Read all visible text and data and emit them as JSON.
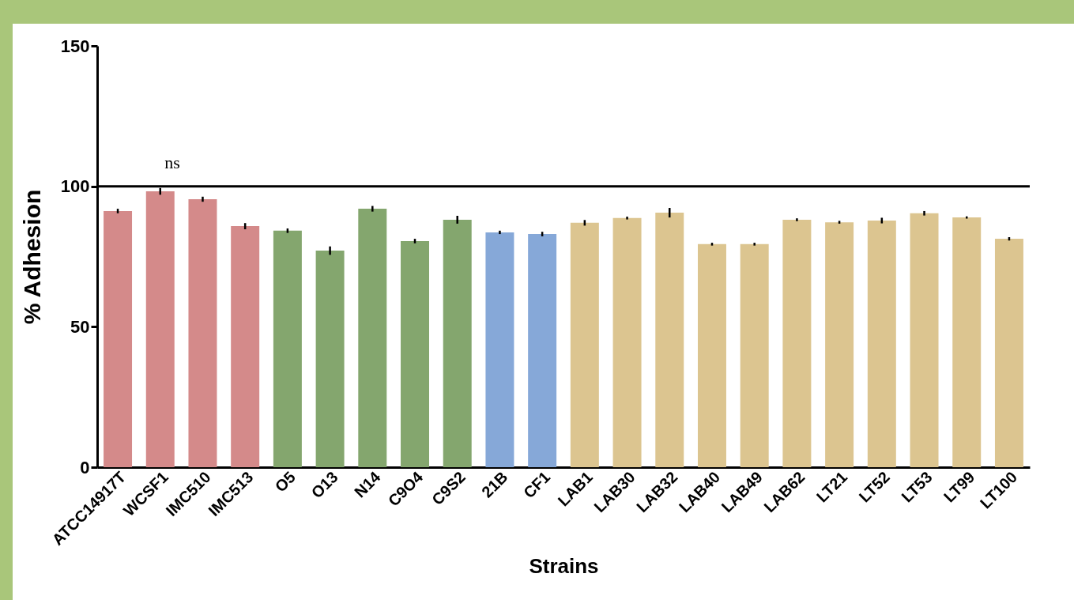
{
  "chart_data": {
    "type": "bar",
    "xlabel": "Strains",
    "ylabel": "% Adhesion",
    "categories": [
      "ATCC14917T",
      "WCSF1",
      "IMC510",
      "IMC513",
      "O5",
      "O13",
      "N14",
      "C9O4",
      "C9S2",
      "21B",
      "CF1",
      "LAB1",
      "LAB30",
      "LAB32",
      "LAB40",
      "LAB49",
      "LAB62",
      "LT21",
      "LT52",
      "LT53",
      "LT99",
      "LT100"
    ],
    "values": [
      91.2,
      98.2,
      95.4,
      85.8,
      84.2,
      77.1,
      92.0,
      80.5,
      88.1,
      83.6,
      83.0,
      87.0,
      88.7,
      90.6,
      79.4,
      79.4,
      88.1,
      87.2,
      87.8,
      90.4,
      88.9,
      81.3
    ],
    "errors": [
      0.8,
      1.2,
      0.9,
      1.1,
      0.8,
      1.5,
      1.0,
      0.8,
      1.4,
      0.6,
      0.8,
      1.0,
      0.5,
      1.7,
      0.5,
      0.5,
      0.5,
      0.5,
      1.0,
      0.8,
      0.4,
      0.6
    ],
    "colors": [
      "#d48a8a",
      "#d48a8a",
      "#d48a8a",
      "#d48a8a",
      "#84a66e",
      "#84a66e",
      "#84a66e",
      "#84a66e",
      "#84a66e",
      "#86a8d8",
      "#86a8d8",
      "#dcc590",
      "#dcc590",
      "#dcc590",
      "#dcc590",
      "#dcc590",
      "#dcc590",
      "#dcc590",
      "#dcc590",
      "#dcc590",
      "#dcc590",
      "#dcc590"
    ],
    "ylim": [
      0,
      150
    ],
    "yticks": [
      0,
      50,
      100,
      150
    ],
    "grid": false,
    "ref_lines": [
      {
        "axis": "y",
        "value": 100,
        "color": "#000000"
      }
    ],
    "annotations": [
      "ns"
    ]
  }
}
